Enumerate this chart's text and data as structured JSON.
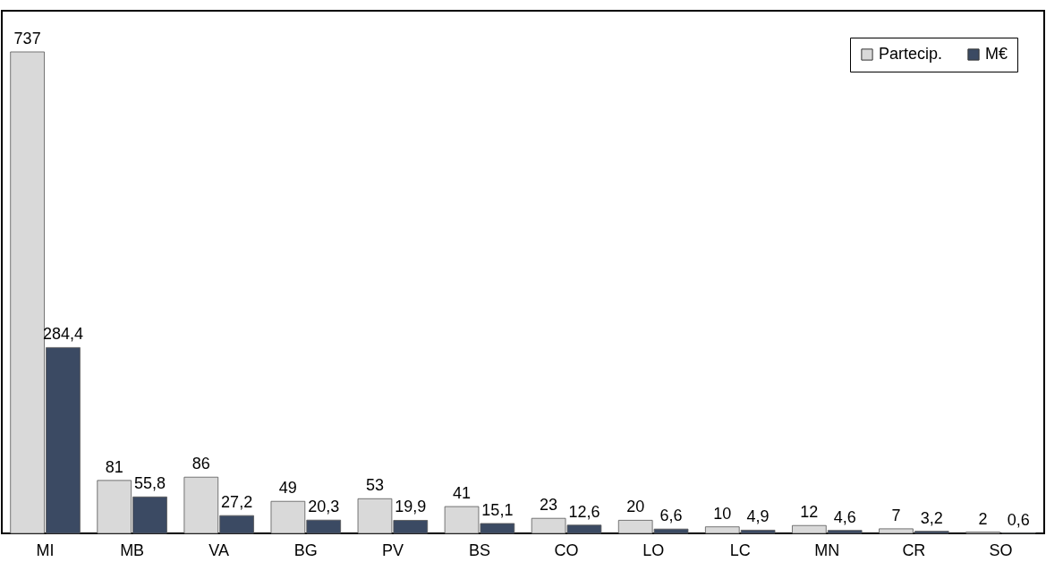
{
  "chart_data": {
    "type": "bar",
    "categories": [
      "MI",
      "MB",
      "VA",
      "BG",
      "PV",
      "BS",
      "CO",
      "LO",
      "LC",
      "MN",
      "CR",
      "SO"
    ],
    "series": [
      {
        "name": "Partecip.",
        "color": "#d9d9d9",
        "values": [
          737,
          81,
          86,
          49,
          53,
          41,
          23,
          20,
          10,
          12,
          7,
          2
        ],
        "value_labels": [
          "737",
          "81",
          "86",
          "49",
          "53",
          "41",
          "23",
          "20",
          "10",
          "12",
          "7",
          "2"
        ]
      },
      {
        "name": "M€",
        "color": "#3b4a63",
        "values": [
          284.4,
          55.8,
          27.2,
          20.3,
          19.9,
          15.1,
          12.6,
          6.6,
          4.9,
          4.6,
          3.2,
          0.6
        ],
        "value_labels": [
          "284,4",
          "55,8",
          "27,2",
          "20,3",
          "19,9",
          "15,1",
          "12,6",
          "6,6",
          "4,9",
          "4,6",
          "3,2",
          "0,6"
        ]
      }
    ],
    "legend": "top right",
    "grid": false
  }
}
